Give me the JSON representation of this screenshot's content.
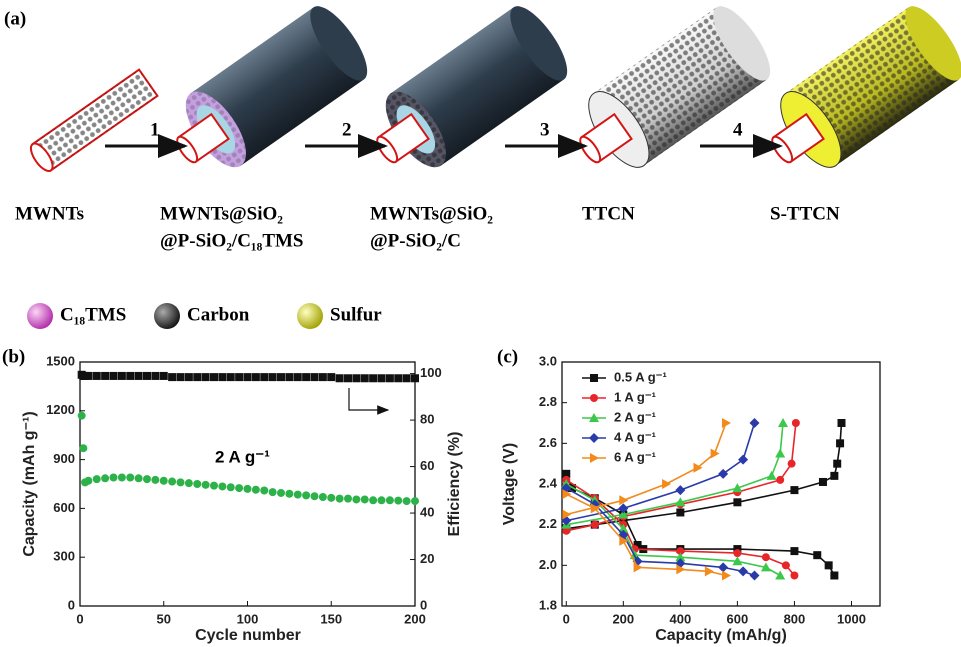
{
  "panel_a": {
    "label": "(a)",
    "stages": [
      {
        "lines": [
          "MWNTs"
        ]
      },
      {
        "lines": [
          "MWNTs@SiO₂",
          "@P-SiO₂/C₁₈TMS"
        ]
      },
      {
        "lines": [
          "MWNTs@SiO₂",
          "@P-SiO₂/C"
        ]
      },
      {
        "lines": [
          "TTCN"
        ]
      },
      {
        "lines": [
          "S-TTCN"
        ]
      }
    ],
    "steps": [
      "1",
      "2",
      "3",
      "4"
    ],
    "legend": [
      "C₁₈TMS",
      "Carbon",
      "Sulfur"
    ]
  },
  "chart_data": [
    {
      "type": "scatter",
      "label": "(b)",
      "annotation": "2 A g⁻¹",
      "xlabel": "Cycle number",
      "ylabel": "Capacity (mAh g⁻¹)",
      "y2label": "Efficiency (%)",
      "xlim": [
        0,
        200
      ],
      "xticks": [
        0,
        50,
        100,
        150,
        200
      ],
      "ylim": [
        0,
        1500
      ],
      "yticks": [
        0,
        300,
        600,
        900,
        1200,
        1500
      ],
      "y2lim": [
        0,
        105
      ],
      "y2ticks": [
        0,
        20,
        40,
        60,
        80,
        100
      ],
      "x": [
        1,
        2,
        3,
        5,
        10,
        15,
        20,
        25,
        30,
        35,
        40,
        45,
        50,
        55,
        60,
        65,
        70,
        75,
        80,
        85,
        90,
        95,
        100,
        105,
        110,
        115,
        120,
        125,
        130,
        135,
        140,
        145,
        150,
        155,
        160,
        165,
        170,
        175,
        180,
        185,
        190,
        195,
        200
      ],
      "series": [
        {
          "color": "#2db24a",
          "marker": "circle",
          "values": [
            1170,
            970,
            760,
            770,
            780,
            785,
            790,
            790,
            790,
            785,
            780,
            775,
            770,
            765,
            760,
            755,
            750,
            745,
            740,
            735,
            730,
            725,
            720,
            715,
            710,
            700,
            695,
            690,
            685,
            680,
            675,
            670,
            665,
            660,
            660,
            655,
            655,
            650,
            650,
            650,
            648,
            645,
            645
          ]
        },
        {
          "color": "#111111",
          "marker": "square",
          "axis": "y2",
          "values": [
            99.5,
            99,
            99,
            99,
            99,
            99,
            99,
            99,
            99,
            99,
            99,
            99,
            99,
            98.5,
            98.5,
            98.5,
            98.5,
            98.5,
            98.5,
            98.5,
            98.5,
            98.5,
            98.5,
            98.5,
            98.5,
            98.5,
            98.5,
            98.5,
            98.5,
            98.5,
            98.5,
            98.5,
            98.5,
            98,
            98,
            98,
            98,
            98,
            98,
            98,
            98,
            98,
            98
          ]
        }
      ]
    },
    {
      "type": "line",
      "label": "(c)",
      "xlabel": "Capacity (mAh/g)",
      "ylabel": "Voltage (V)",
      "xlim": [
        -15,
        1100
      ],
      "xticks": [
        0,
        200,
        400,
        600,
        800,
        1000
      ],
      "ylim": [
        1.8,
        3.0
      ],
      "yticks": [
        1.8,
        {
          "value": 2,
          "label": "2.0"
        },
        2.2,
        2.4,
        2.6,
        2.8,
        {
          "value": 3,
          "label": "3.0"
        }
      ],
      "legend": "upper left",
      "series": [
        {
          "name": "0.5 A g⁻¹",
          "color": "#111111",
          "marker": "square",
          "x": [
            0,
            20,
            100,
            200,
            250,
            270,
            400,
            600,
            800,
            880,
            920,
            940,
            null,
            0,
            100,
            200,
            400,
            600,
            800,
            900,
            940,
            950,
            960,
            965
          ],
          "values": [
            2.45,
            2.38,
            2.33,
            2.25,
            2.1,
            2.08,
            2.08,
            2.08,
            2.07,
            2.05,
            2.0,
            1.95,
            null,
            2.18,
            2.2,
            2.22,
            2.26,
            2.31,
            2.37,
            2.41,
            2.44,
            2.5,
            2.6,
            2.7
          ]
        },
        {
          "name": "1  A g⁻¹",
          "color": "#e8262a",
          "marker": "circle",
          "x": [
            0,
            100,
            200,
            240,
            400,
            600,
            700,
            770,
            800,
            null,
            0,
            100,
            200,
            400,
            600,
            750,
            790,
            805
          ],
          "values": [
            2.42,
            2.33,
            2.2,
            2.08,
            2.07,
            2.06,
            2.04,
            2.0,
            1.95,
            null,
            2.17,
            2.2,
            2.24,
            2.3,
            2.36,
            2.42,
            2.5,
            2.7
          ]
        },
        {
          "name": "2  A g⁻¹",
          "color": "#3cc84a",
          "marker": "triangle",
          "x": [
            0,
            100,
            200,
            240,
            400,
            600,
            700,
            750,
            null,
            0,
            200,
            400,
            600,
            720,
            750,
            760
          ],
          "values": [
            2.4,
            2.32,
            2.18,
            2.05,
            2.04,
            2.02,
            1.99,
            1.95,
            null,
            2.2,
            2.25,
            2.31,
            2.38,
            2.44,
            2.55,
            2.7
          ]
        },
        {
          "name": "4  A g⁻¹",
          "color": "#2a3aa8",
          "marker": "diamond",
          "x": [
            0,
            100,
            200,
            250,
            400,
            550,
            620,
            660,
            null,
            0,
            200,
            400,
            550,
            620,
            660
          ],
          "values": [
            2.38,
            2.3,
            2.15,
            2.02,
            2.01,
            1.99,
            1.97,
            1.95,
            null,
            2.22,
            2.28,
            2.37,
            2.45,
            2.52,
            2.7
          ]
        },
        {
          "name": "6  A g⁻¹",
          "color": "#f28a1c",
          "marker": "triangle-right",
          "x": [
            0,
            100,
            200,
            250,
            400,
            500,
            560,
            null,
            0,
            200,
            350,
            460,
            520,
            560
          ],
          "values": [
            2.35,
            2.28,
            2.12,
            1.99,
            1.98,
            1.97,
            1.95,
            null,
            2.25,
            2.32,
            2.4,
            2.48,
            2.55,
            2.7
          ]
        }
      ]
    }
  ]
}
